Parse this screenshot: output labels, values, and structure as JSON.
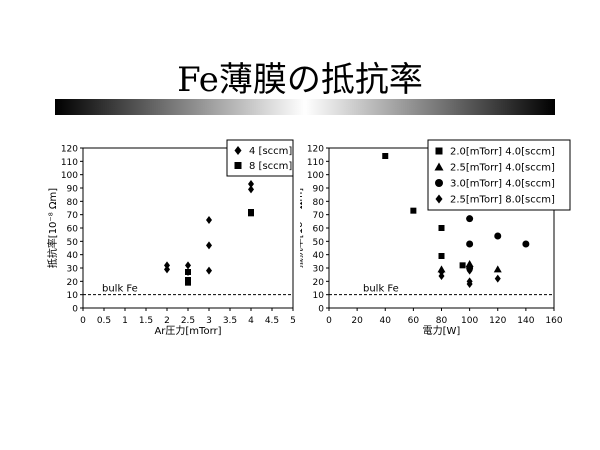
{
  "slide": {
    "title": "Fe薄膜の抵抗率"
  },
  "chart_data": [
    {
      "type": "scatter",
      "xlabel": "Ar圧力[mTorr]",
      "ylabel": "抵抗率[10⁻⁸ Ωm]",
      "xlim": [
        0,
        5
      ],
      "ylim": [
        0,
        120
      ],
      "xticks": [
        "0",
        "0.5",
        "1",
        "1.5",
        "2",
        "2.5",
        "3",
        "3.5",
        "4",
        "4.5",
        "5"
      ],
      "yticks": [
        "0",
        "10",
        "20",
        "30",
        "40",
        "50",
        "60",
        "70",
        "80",
        "90",
        "100",
        "110",
        "120"
      ],
      "legend_position": "top-right",
      "reference_line": {
        "label": "bulk Fe",
        "y": 10,
        "style": "dashed"
      },
      "series": [
        {
          "name": "4 [sccm]",
          "marker": "diamond",
          "points": [
            [
              2,
              29
            ],
            [
              2,
              32
            ],
            [
              2.5,
              27
            ],
            [
              2.5,
              32
            ],
            [
              3,
              28
            ],
            [
              3,
              47
            ],
            [
              3,
              66
            ],
            [
              4,
              89
            ],
            [
              4,
              93
            ]
          ]
        },
        {
          "name": "8 [sccm]",
          "marker": "square",
          "points": [
            [
              2.5,
              19
            ],
            [
              2.5,
              21
            ],
            [
              2.5,
              27
            ],
            [
              4,
              71
            ],
            [
              4,
              72
            ]
          ]
        }
      ]
    },
    {
      "type": "scatter",
      "xlabel": "電力[W]",
      "ylabel": "抵抗率[10⁻⁸ Ωm]",
      "xlim": [
        0,
        160
      ],
      "ylim": [
        0,
        120
      ],
      "xticks": [
        "0",
        "20",
        "40",
        "60",
        "80",
        "100",
        "120",
        "140",
        "160"
      ],
      "yticks": [
        "0",
        "10",
        "20",
        "30",
        "40",
        "50",
        "60",
        "70",
        "80",
        "90",
        "100",
        "110",
        "120"
      ],
      "legend_position": "top-right",
      "reference_line": {
        "label": "bulk Fe",
        "y": 10,
        "style": "dashed"
      },
      "series": [
        {
          "name": "2.0[mTorr] 4.0[sccm]",
          "marker": "square",
          "points": [
            [
              40,
              114
            ],
            [
              60,
              73
            ],
            [
              80,
              60
            ],
            [
              80,
              39
            ],
            [
              95,
              32
            ]
          ]
        },
        {
          "name": "2.5[mTorr] 4.0[sccm]",
          "marker": "triangle",
          "points": [
            [
              80,
              29
            ],
            [
              100,
              33
            ],
            [
              120,
              29
            ]
          ]
        },
        {
          "name": "3.0[mTorr] 4.0[sccm]",
          "marker": "circle",
          "points": [
            [
              100,
              67
            ],
            [
              100,
              48
            ],
            [
              100,
              30
            ],
            [
              120,
              54
            ],
            [
              140,
              48
            ]
          ]
        },
        {
          "name": "2.5[mTorr] 8.0[sccm]",
          "marker": "diamond",
          "points": [
            [
              80,
              27
            ],
            [
              80,
              24
            ],
            [
              100,
              28
            ],
            [
              100,
              20
            ],
            [
              100,
              18
            ],
            [
              120,
              22
            ]
          ]
        }
      ]
    }
  ]
}
